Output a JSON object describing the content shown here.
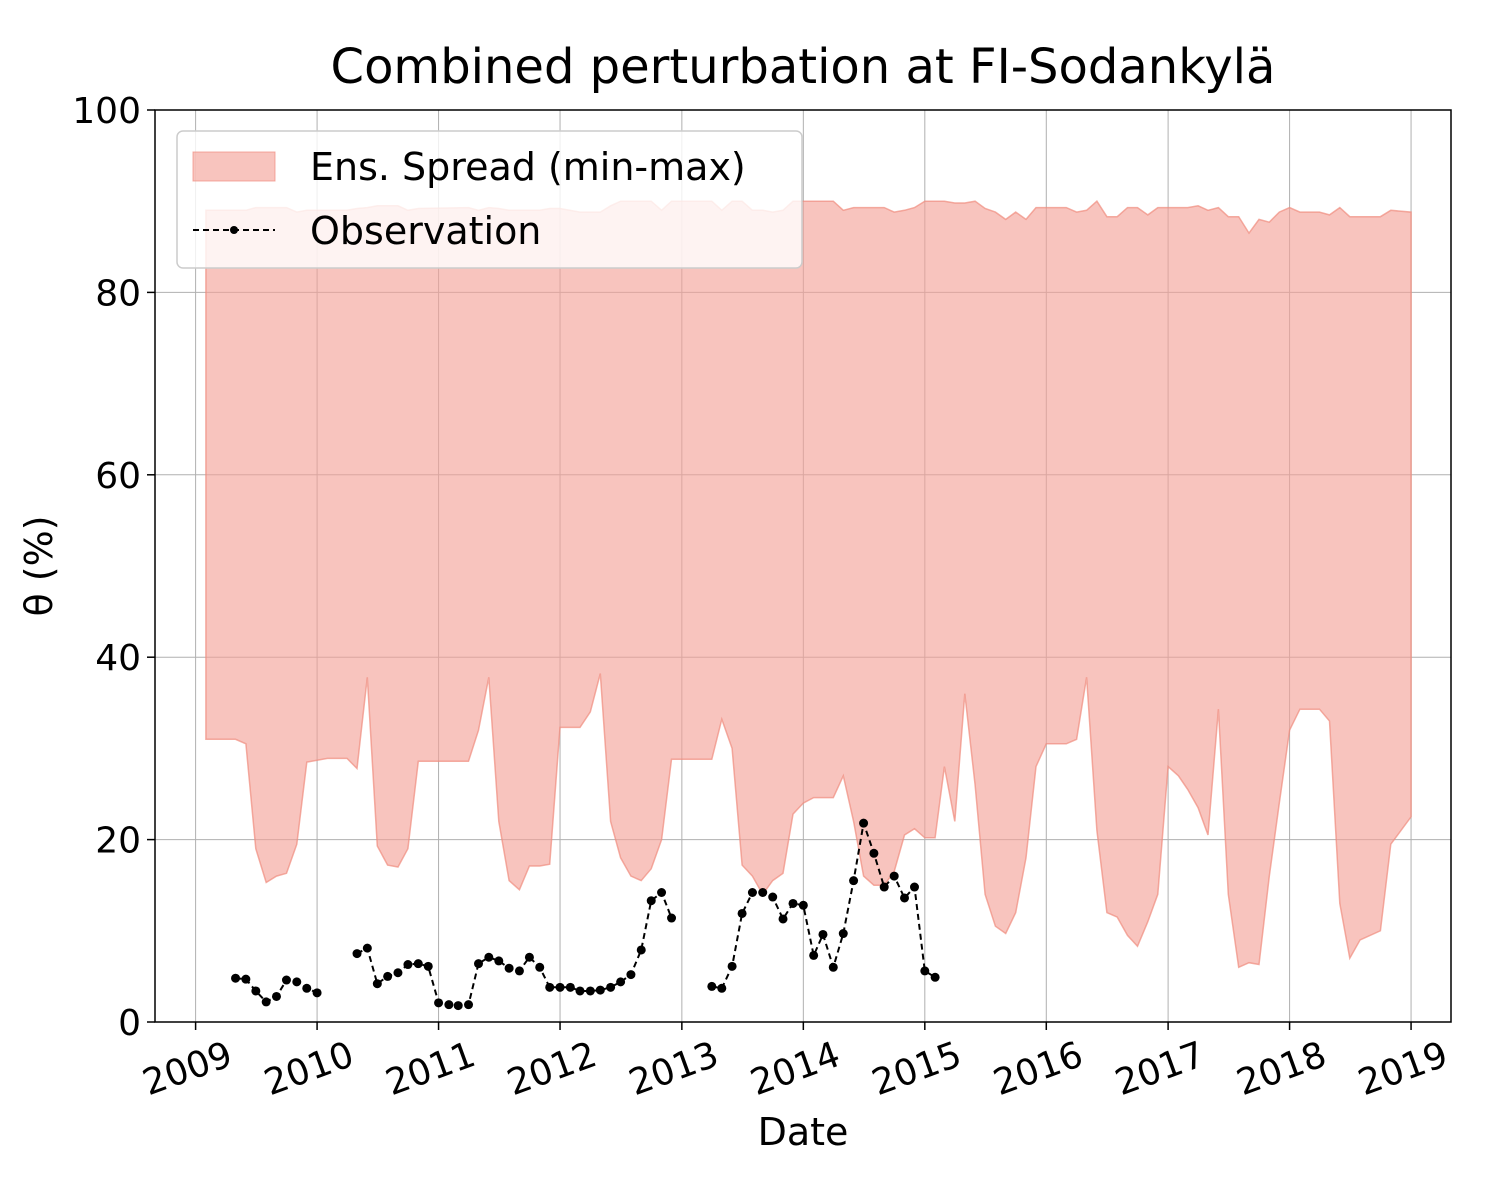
{
  "chart_data": {
    "type": "area",
    "title": "Combined perturbation at FI-Sodankylä",
    "xlabel": "Date",
    "ylabel": "θ  (%)",
    "xlim": [
      "2008-09-01",
      "2019-05-01"
    ],
    "ylim": [
      0,
      100
    ],
    "x_ticks": [
      "2009",
      "2010",
      "2011",
      "2012",
      "2013",
      "2014",
      "2015",
      "2016",
      "2017",
      "2018",
      "2019"
    ],
    "y_ticks": [
      "0",
      "20",
      "40",
      "60",
      "80",
      "100"
    ],
    "grid": true,
    "legend": {
      "placement": "top-left",
      "entries": [
        "Ens. Spread (min-max)",
        "Observation"
      ]
    },
    "colors": {
      "spread_fill": "#f4a096",
      "spread_edge": "#f08c7e",
      "observation": "#000000"
    },
    "spread": {
      "name": "Ens. Spread (min-max)",
      "points": [
        [
          "2009-02-01",
          31.0,
          89.0
        ],
        [
          "2009-05-01",
          31.0,
          89.0
        ],
        [
          "2009-06-01",
          30.5,
          89.0
        ],
        [
          "2009-07-01",
          19.0,
          89.3
        ],
        [
          "2009-08-01",
          15.3,
          89.3
        ],
        [
          "2009-09-01",
          16.0,
          89.3
        ],
        [
          "2009-10-01",
          16.3,
          89.3
        ],
        [
          "2009-11-01",
          19.5,
          88.8
        ],
        [
          "2009-12-01",
          28.5,
          89.0
        ],
        [
          "2010-02-01",
          28.9,
          89.0
        ],
        [
          "2010-04-01",
          28.9,
          89.0
        ],
        [
          "2010-05-01",
          27.8,
          89.2
        ],
        [
          "2010-06-01",
          37.8,
          89.3
        ],
        [
          "2010-07-01",
          19.3,
          89.5
        ],
        [
          "2010-08-01",
          17.2,
          89.5
        ],
        [
          "2010-09-01",
          17.0,
          89.5
        ],
        [
          "2010-10-01",
          19.0,
          89.0
        ],
        [
          "2010-11-01",
          28.6,
          89.2
        ],
        [
          "2011-04-01",
          28.6,
          89.3
        ],
        [
          "2011-05-01",
          32.0,
          89.0
        ],
        [
          "2011-06-01",
          37.8,
          89.3
        ],
        [
          "2011-07-01",
          22.0,
          89.2
        ],
        [
          "2011-08-01",
          15.5,
          89.0
        ],
        [
          "2011-09-01",
          14.5,
          89.0
        ],
        [
          "2011-10-01",
          17.1,
          89.0
        ],
        [
          "2011-11-01",
          17.1,
          89.0
        ],
        [
          "2011-12-01",
          17.3,
          89.2
        ],
        [
          "2012-01-01",
          32.3,
          89.2
        ],
        [
          "2012-03-01",
          32.3,
          88.8
        ],
        [
          "2012-04-01",
          34.0,
          88.8
        ],
        [
          "2012-05-01",
          38.2,
          88.8
        ],
        [
          "2012-06-01",
          22.0,
          89.5
        ],
        [
          "2012-07-01",
          18.0,
          90.0
        ],
        [
          "2012-08-01",
          16.0,
          90.0
        ],
        [
          "2012-09-01",
          15.5,
          90.0
        ],
        [
          "2012-10-01",
          16.8,
          90.0
        ],
        [
          "2012-11-01",
          20.0,
          89.0
        ],
        [
          "2012-12-01",
          28.8,
          90.0
        ],
        [
          "2013-04-01",
          28.8,
          90.0
        ],
        [
          "2013-05-01",
          33.2,
          89.0
        ],
        [
          "2013-06-01",
          30.0,
          90.0
        ],
        [
          "2013-07-01",
          17.2,
          90.0
        ],
        [
          "2013-08-01",
          16.0,
          89.0
        ],
        [
          "2013-09-01",
          14.0,
          89.0
        ],
        [
          "2013-10-01",
          15.5,
          88.8
        ],
        [
          "2013-11-01",
          16.3,
          89.0
        ],
        [
          "2013-12-01",
          22.8,
          90.0
        ],
        [
          "2014-01-01",
          24.0,
          90.0
        ],
        [
          "2014-02-01",
          24.6,
          90.0
        ],
        [
          "2014-04-01",
          24.6,
          90.0
        ],
        [
          "2014-05-01",
          27.0,
          89.0
        ],
        [
          "2014-06-01",
          22.0,
          89.3
        ],
        [
          "2014-07-01",
          16.0,
          89.3
        ],
        [
          "2014-08-01",
          15.0,
          89.3
        ],
        [
          "2014-09-01",
          15.0,
          89.3
        ],
        [
          "2014-10-01",
          16.5,
          88.8
        ],
        [
          "2014-11-01",
          20.5,
          89.0
        ],
        [
          "2014-12-01",
          21.2,
          89.3
        ],
        [
          "2015-01-01",
          20.2,
          90.0
        ],
        [
          "2015-02-01",
          20.2,
          90.0
        ],
        [
          "2015-03-01",
          28.0,
          90.0
        ],
        [
          "2015-04-01",
          22.0,
          89.8
        ],
        [
          "2015-05-01",
          36.0,
          89.8
        ],
        [
          "2015-06-01",
          26.0,
          90.0
        ],
        [
          "2015-07-01",
          14.0,
          89.2
        ],
        [
          "2015-08-01",
          10.5,
          88.8
        ],
        [
          "2015-09-01",
          9.7,
          88.0
        ],
        [
          "2015-10-01",
          12.0,
          88.8
        ],
        [
          "2015-11-01",
          18.0,
          88.0
        ],
        [
          "2015-12-01",
          28.0,
          89.3
        ],
        [
          "2016-01-01",
          30.5,
          89.3
        ],
        [
          "2016-03-01",
          30.5,
          89.3
        ],
        [
          "2016-04-01",
          31.0,
          88.8
        ],
        [
          "2016-05-01",
          37.8,
          89.0
        ],
        [
          "2016-06-01",
          21.0,
          90.0
        ],
        [
          "2016-07-01",
          12.0,
          88.3
        ],
        [
          "2016-08-01",
          11.5,
          88.3
        ],
        [
          "2016-09-01",
          9.5,
          89.3
        ],
        [
          "2016-10-01",
          8.3,
          89.3
        ],
        [
          "2016-11-01",
          11.0,
          88.5
        ],
        [
          "2016-12-01",
          14.0,
          89.3
        ],
        [
          "2017-01-01",
          28.0,
          89.3
        ],
        [
          "2017-02-01",
          27.0,
          89.3
        ],
        [
          "2017-03-01",
          25.5,
          89.3
        ],
        [
          "2017-04-01",
          23.5,
          89.5
        ],
        [
          "2017-05-01",
          20.5,
          89.0
        ],
        [
          "2017-06-01",
          34.3,
          89.3
        ],
        [
          "2017-07-01",
          14.0,
          88.3
        ],
        [
          "2017-08-01",
          6.0,
          88.3
        ],
        [
          "2017-09-01",
          6.5,
          86.5
        ],
        [
          "2017-10-01",
          6.3,
          88.0
        ],
        [
          "2017-11-01",
          16.0,
          87.7
        ],
        [
          "2017-12-01",
          24.0,
          88.8
        ],
        [
          "2018-01-01",
          32.0,
          89.3
        ],
        [
          "2018-02-01",
          34.3,
          88.8
        ],
        [
          "2018-04-01",
          34.3,
          88.8
        ],
        [
          "2018-05-01",
          33.0,
          88.5
        ],
        [
          "2018-06-01",
          13.0,
          89.3
        ],
        [
          "2018-07-01",
          7.0,
          88.3
        ],
        [
          "2018-08-01",
          9.0,
          88.3
        ],
        [
          "2018-10-01",
          10.0,
          88.3
        ],
        [
          "2018-11-01",
          19.5,
          89.0
        ],
        [
          "2019-01-01",
          22.5,
          88.8
        ]
      ]
    },
    "observation": {
      "name": "Observation",
      "segments": [
        [
          [
            "2009-05-01",
            4.8
          ],
          [
            "2009-06-01",
            4.7
          ],
          [
            "2009-07-01",
            3.4
          ],
          [
            "2009-08-01",
            2.2
          ],
          [
            "2009-09-01",
            2.8
          ],
          [
            "2009-10-01",
            4.6
          ],
          [
            "2009-11-01",
            4.4
          ],
          [
            "2009-12-01",
            3.7
          ],
          [
            "2010-01-01",
            3.2
          ]
        ],
        [
          [
            "2010-05-01",
            7.5
          ],
          [
            "2010-06-01",
            8.1
          ],
          [
            "2010-07-01",
            4.2
          ],
          [
            "2010-08-01",
            5.0
          ],
          [
            "2010-09-01",
            5.4
          ],
          [
            "2010-10-01",
            6.3
          ],
          [
            "2010-11-01",
            6.4
          ],
          [
            "2010-12-01",
            6.1
          ],
          [
            "2011-01-01",
            2.1
          ],
          [
            "2011-02-01",
            1.9
          ],
          [
            "2011-03-01",
            1.8
          ],
          [
            "2011-04-01",
            1.9
          ],
          [
            "2011-05-01",
            6.4
          ],
          [
            "2011-06-01",
            7.1
          ],
          [
            "2011-07-01",
            6.7
          ],
          [
            "2011-08-01",
            5.9
          ],
          [
            "2011-09-01",
            5.6
          ],
          [
            "2011-10-01",
            7.1
          ],
          [
            "2011-11-01",
            6.0
          ],
          [
            "2011-12-01",
            3.8
          ],
          [
            "2012-01-01",
            3.8
          ],
          [
            "2012-02-01",
            3.8
          ],
          [
            "2012-03-01",
            3.4
          ],
          [
            "2012-04-01",
            3.4
          ],
          [
            "2012-05-01",
            3.5
          ],
          [
            "2012-06-01",
            3.8
          ],
          [
            "2012-07-01",
            4.4
          ],
          [
            "2012-08-01",
            5.2
          ],
          [
            "2012-09-01",
            7.9
          ],
          [
            "2012-10-01",
            13.3
          ],
          [
            "2012-11-01",
            14.2
          ],
          [
            "2012-12-01",
            11.4
          ]
        ],
        [
          [
            "2013-04-01",
            3.9
          ],
          [
            "2013-05-01",
            3.7
          ],
          [
            "2013-06-01",
            6.1
          ],
          [
            "2013-07-01",
            11.9
          ],
          [
            "2013-08-01",
            14.2
          ],
          [
            "2013-09-01",
            14.2
          ],
          [
            "2013-10-01",
            13.7
          ],
          [
            "2013-11-01",
            11.3
          ],
          [
            "2013-12-01",
            13.0
          ],
          [
            "2014-01-01",
            12.8
          ],
          [
            "2014-02-01",
            7.3
          ],
          [
            "2014-03-01",
            9.6
          ],
          [
            "2014-04-01",
            6.0
          ],
          [
            "2014-05-01",
            9.7
          ],
          [
            "2014-06-01",
            15.5
          ],
          [
            "2014-07-01",
            21.8
          ],
          [
            "2014-08-01",
            18.5
          ],
          [
            "2014-09-01",
            14.8
          ],
          [
            "2014-10-01",
            16.0
          ],
          [
            "2014-11-01",
            13.6
          ],
          [
            "2014-12-01",
            14.8
          ],
          [
            "2015-01-01",
            5.6
          ],
          [
            "2015-02-01",
            4.9
          ]
        ]
      ]
    }
  }
}
